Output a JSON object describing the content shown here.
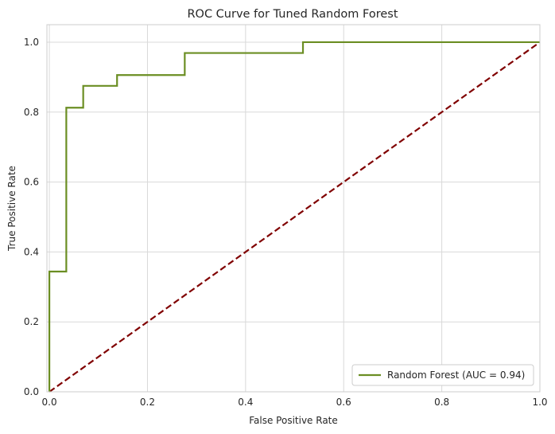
{
  "chart_data": {
    "type": "line",
    "title": "ROC Curve for Tuned Random Forest",
    "xlabel": "False Positive Rate",
    "ylabel": "True Positive Rate",
    "xlim": [
      -0.005,
      1.0
    ],
    "ylim": [
      0.0,
      1.05
    ],
    "x_ticks": [
      0.0,
      0.2,
      0.4,
      0.6,
      0.8,
      1.0
    ],
    "x_tick_labels": [
      "0.0",
      "0.2",
      "0.4",
      "0.6",
      "0.8",
      "1.0"
    ],
    "y_ticks": [
      0.0,
      0.2,
      0.4,
      0.6,
      0.8,
      1.0
    ],
    "y_tick_labels": [
      "0.0",
      "0.2",
      "0.4",
      "0.6",
      "0.8",
      "1.0"
    ],
    "grid": true,
    "legend_position": "lower-right",
    "series": [
      {
        "name": "Random Forest (AUC = 0.94)",
        "color": "#6b8e23",
        "style": "solid",
        "step": true,
        "x": [
          0.0,
          0.0,
          0.0345,
          0.0345,
          0.069,
          0.069,
          0.138,
          0.138,
          0.276,
          0.276,
          0.517,
          0.517,
          1.0
        ],
        "y": [
          0.0,
          0.344,
          0.344,
          0.8125,
          0.8125,
          0.875,
          0.875,
          0.906,
          0.906,
          0.969,
          0.969,
          1.0,
          1.0
        ]
      },
      {
        "color": "#800000",
        "style": "dashed",
        "x": [
          0.0,
          1.0
        ],
        "y": [
          0.0,
          1.0
        ]
      }
    ]
  }
}
